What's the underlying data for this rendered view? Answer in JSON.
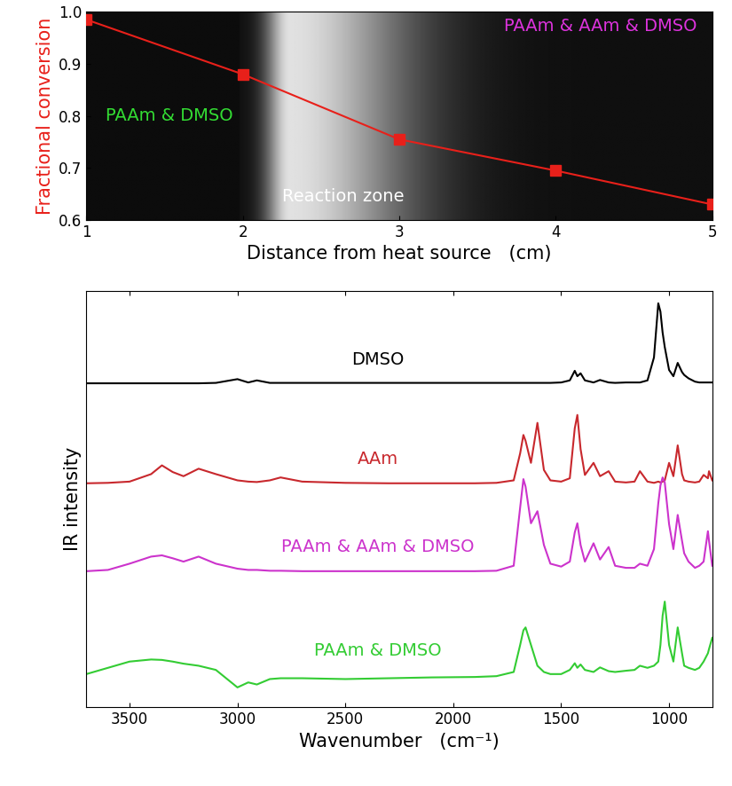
{
  "chart_data": [
    {
      "type": "line",
      "x_label": "Distance from heat source   (cm)",
      "y_label": "Fractional conversion",
      "y_label_color": "#e8201a",
      "x": [
        1,
        2,
        3,
        4,
        5
      ],
      "series": [
        {
          "name": "Fractional conversion",
          "color": "#e8201a",
          "marker": "square",
          "line_style": "solid",
          "values": [
            0.985,
            0.88,
            0.755,
            0.695,
            0.63
          ]
        }
      ],
      "xlim": [
        1,
        5
      ],
      "xticks": [
        1,
        2,
        3,
        4,
        5
      ],
      "ylim": [
        0.6,
        1.0
      ],
      "yticks": [
        0.6,
        0.7,
        0.8,
        0.9,
        1.0
      ],
      "grid": false,
      "annotations": [
        {
          "text": "PAAm & DMSO",
          "color": "#33dd33"
        },
        {
          "text": "Reaction zone",
          "color": "#ffffff"
        },
        {
          "text": "PAAm & AAm & DMSO",
          "color": "#dd33dd"
        }
      ]
    },
    {
      "type": "line",
      "x_label": "Wavenumber   (cm⁻¹)",
      "y_label": "IR intensity",
      "x": [
        3700,
        3600,
        3500,
        3400,
        3350,
        3300,
        3250,
        3180,
        3100,
        3000,
        2950,
        2910,
        2850,
        2800,
        2700,
        2500,
        2300,
        2100,
        1900,
        1800,
        1720,
        1690,
        1675,
        1665,
        1640,
        1610,
        1580,
        1550,
        1500,
        1460,
        1437,
        1425,
        1410,
        1390,
        1350,
        1320,
        1280,
        1250,
        1200,
        1160,
        1135,
        1100,
        1070,
        1050,
        1040,
        1030,
        1020,
        1000,
        980,
        960,
        940,
        930,
        910,
        880,
        860,
        840,
        820,
        815,
        800
      ],
      "series": [
        {
          "name": "DMSO",
          "color": "#000000",
          "values": [
            7.78,
            7.78,
            7.78,
            7.78,
            7.78,
            7.78,
            7.78,
            7.78,
            7.79,
            7.88,
            7.8,
            7.85,
            7.79,
            7.79,
            7.79,
            7.79,
            7.79,
            7.79,
            7.79,
            7.79,
            7.79,
            7.79,
            7.79,
            7.79,
            7.79,
            7.79,
            7.79,
            7.79,
            7.8,
            7.85,
            8.08,
            7.95,
            8.02,
            7.85,
            7.8,
            7.86,
            7.8,
            7.79,
            7.8,
            7.8,
            7.8,
            7.85,
            8.4,
            9.7,
            9.5,
            9.0,
            8.65,
            8.1,
            7.95,
            8.27,
            8.05,
            7.98,
            7.9,
            7.82,
            7.8,
            7.8,
            7.8,
            7.8,
            7.8
          ]
        },
        {
          "name": "AAm",
          "color": "#c8282d",
          "values": [
            5.38,
            5.39,
            5.42,
            5.6,
            5.81,
            5.65,
            5.55,
            5.73,
            5.6,
            5.45,
            5.42,
            5.41,
            5.45,
            5.52,
            5.42,
            5.39,
            5.38,
            5.38,
            5.38,
            5.39,
            5.45,
            6.1,
            6.54,
            6.4,
            5.87,
            6.83,
            5.7,
            5.45,
            5.42,
            5.5,
            6.7,
            7.02,
            6.2,
            5.58,
            5.87,
            5.55,
            5.67,
            5.42,
            5.4,
            5.42,
            5.67,
            5.42,
            5.39,
            5.42,
            5.4,
            5.42,
            5.45,
            5.87,
            5.55,
            6.29,
            5.6,
            5.45,
            5.42,
            5.4,
            5.42,
            5.58,
            5.5,
            5.67,
            5.45
          ]
        },
        {
          "name": "PAAm & AAm & DMSO",
          "color": "#cc33cc",
          "values": [
            3.27,
            3.3,
            3.45,
            3.62,
            3.65,
            3.58,
            3.5,
            3.62,
            3.45,
            3.33,
            3.3,
            3.3,
            3.28,
            3.28,
            3.27,
            3.27,
            3.27,
            3.27,
            3.27,
            3.28,
            3.4,
            4.8,
            5.48,
            5.3,
            4.42,
            4.71,
            3.9,
            3.45,
            3.38,
            3.5,
            4.2,
            4.42,
            3.9,
            3.5,
            3.94,
            3.55,
            3.85,
            3.4,
            3.35,
            3.35,
            3.45,
            3.4,
            3.8,
            4.9,
            5.33,
            5.52,
            5.4,
            4.4,
            3.8,
            4.62,
            4.0,
            3.7,
            3.5,
            3.35,
            3.4,
            3.5,
            4.23,
            4.0,
            3.4
          ]
        },
        {
          "name": "PAAm & DMSO",
          "color": "#33cc33",
          "values": [
            0.8,
            0.95,
            1.1,
            1.15,
            1.14,
            1.1,
            1.05,
            1.0,
            0.9,
            0.48,
            0.6,
            0.55,
            0.68,
            0.7,
            0.7,
            0.68,
            0.7,
            0.72,
            0.73,
            0.75,
            0.85,
            1.5,
            1.85,
            1.92,
            1.5,
            1.0,
            0.85,
            0.8,
            0.8,
            0.9,
            1.06,
            0.95,
            1.03,
            0.9,
            0.85,
            0.96,
            0.87,
            0.85,
            0.88,
            0.9,
            1.0,
            0.95,
            1.0,
            1.1,
            1.5,
            2.2,
            2.54,
            1.5,
            1.1,
            1.92,
            1.3,
            1.0,
            0.95,
            0.9,
            0.95,
            1.1,
            1.3,
            1.4,
            1.67
          ]
        }
      ],
      "xlim": [
        3700,
        800
      ],
      "xticks": [
        3500,
        3000,
        2500,
        2000,
        1500,
        1000
      ],
      "ylim": [
        0,
        10
      ],
      "yticks": [],
      "tick_labels": "x",
      "grid": false
    }
  ]
}
